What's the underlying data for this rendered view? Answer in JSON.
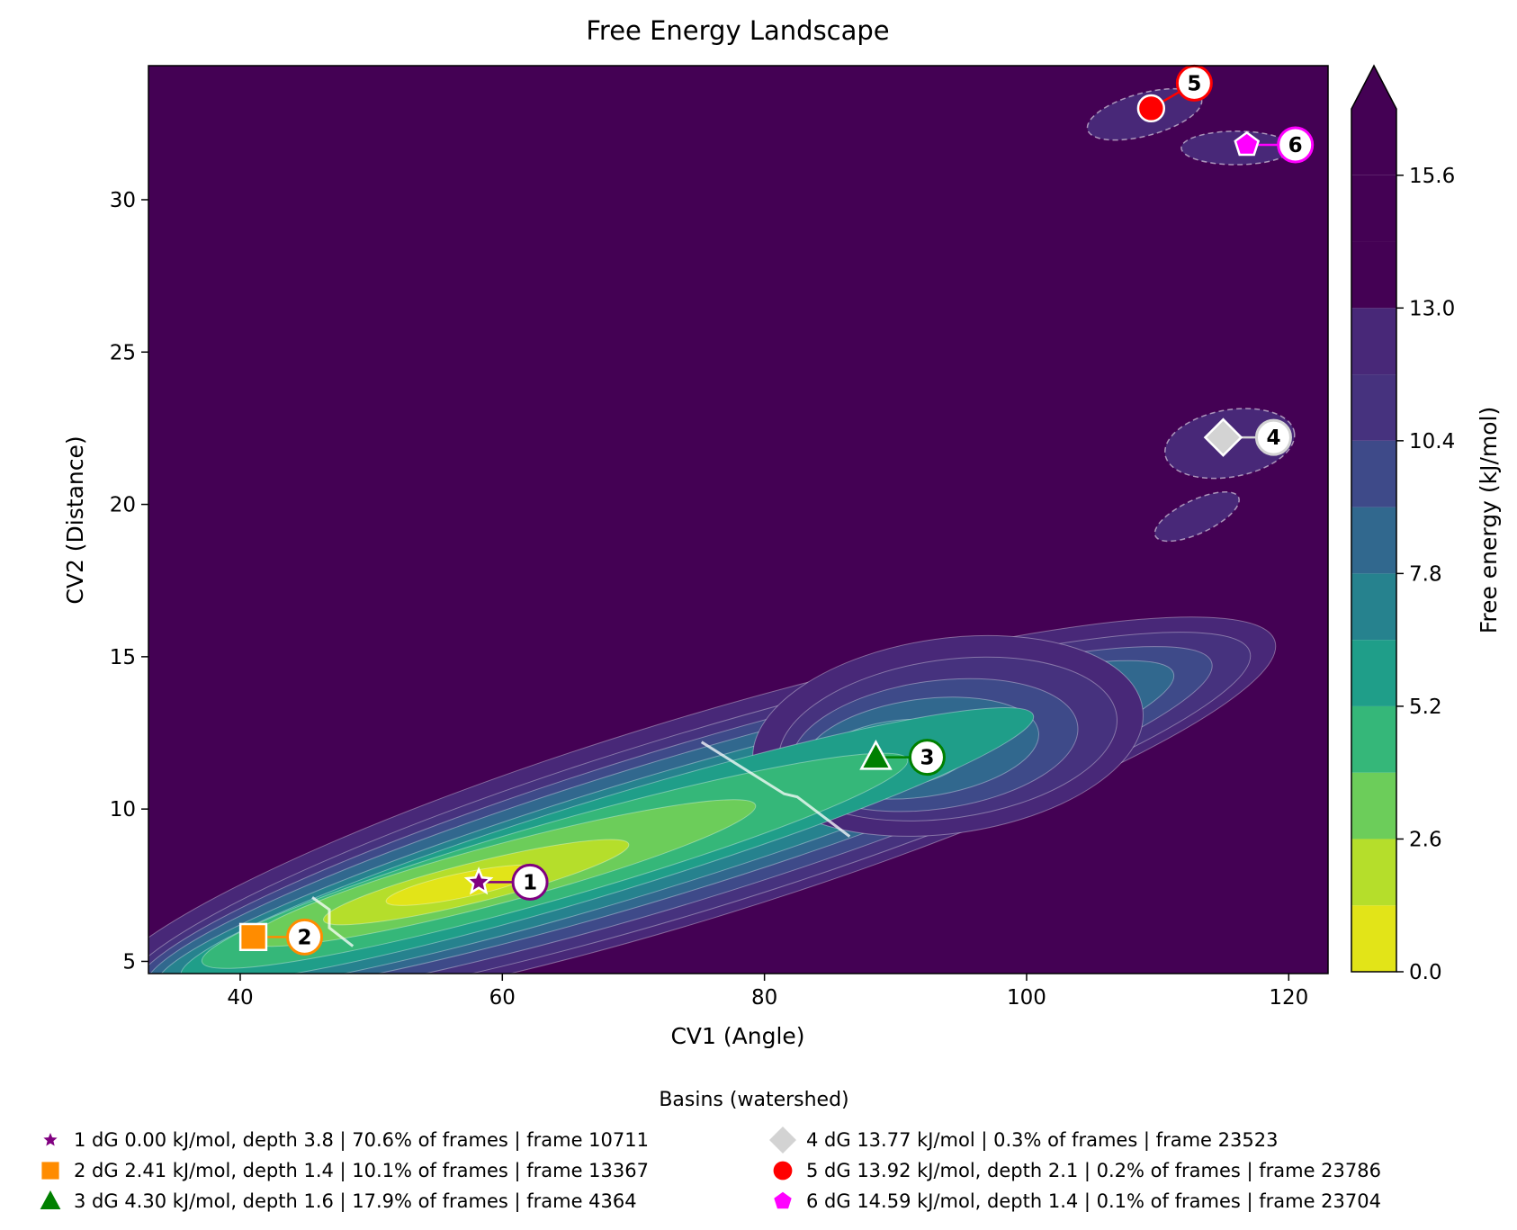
{
  "chart_data": {
    "type": "contour",
    "title": "Free Energy Landscape",
    "xlabel": "CV1 (Angle)",
    "ylabel": "CV2 (Distance)",
    "xlim": [
      33,
      123
    ],
    "ylim": [
      4.6,
      34.4
    ],
    "xticks": [
      40,
      60,
      80,
      100,
      120
    ],
    "yticks": [
      5,
      10,
      15,
      20,
      25,
      30
    ],
    "colorbar": {
      "label": "Free energy (kJ/mol)",
      "levels": [
        0.0,
        1.3,
        2.6,
        3.9,
        5.2,
        6.5,
        7.8,
        9.1,
        10.4,
        11.7,
        13.0,
        14.3,
        15.6,
        16.9
      ],
      "ticks": [
        "0.0",
        "2.6",
        "5.2",
        "7.8",
        "10.4",
        "13.0",
        "15.6"
      ],
      "colors": [
        "#e2e418",
        "#b5de2b",
        "#6ccd5a",
        "#35b779",
        "#1f9e89",
        "#26828e",
        "#31688e",
        "#3e4a89",
        "#46327e",
        "#482878",
        "#440154"
      ],
      "extend": "max"
    },
    "basins": [
      {
        "id": "1",
        "x": 58.2,
        "y": 7.6,
        "marker": "star",
        "color": "#800080",
        "label": "1  dG 0.00 kJ/mol, depth 3.8  |  70.6% of frames  |  frame 10711"
      },
      {
        "id": "2",
        "x": 41.0,
        "y": 5.8,
        "marker": "square",
        "color": "#ff8c00",
        "label": "2  dG 2.41 kJ/mol, depth 1.4  |  10.1% of frames  |  frame 13367"
      },
      {
        "id": "3",
        "x": 88.5,
        "y": 11.7,
        "marker": "triangle",
        "color": "#008000",
        "label": "3  dG 4.30 kJ/mol, depth 1.6  |  17.9% of frames  |  frame 4364"
      },
      {
        "id": "4",
        "x": 115.0,
        "y": 22.2,
        "marker": "diamond",
        "color": "#d3d3d3",
        "label": "4  dG 13.77 kJ/mol  |  0.3% of frames  |  frame 23523"
      },
      {
        "id": "5",
        "x": 109.5,
        "y": 33.0,
        "marker": "circle",
        "color": "#ff0000",
        "label": "5  dG 13.92 kJ/mol, depth 2.1  |  0.2% of frames  |  frame 23786"
      },
      {
        "id": "6",
        "x": 116.8,
        "y": 31.8,
        "marker": "pentagon",
        "color": "#ff00ff",
        "label": "6  dG 14.59 kJ/mol, depth 1.4  |  0.1% of frames  |  frame 23704"
      }
    ],
    "legend_title": "Basins (watershed)",
    "legend_location": "bottom"
  }
}
